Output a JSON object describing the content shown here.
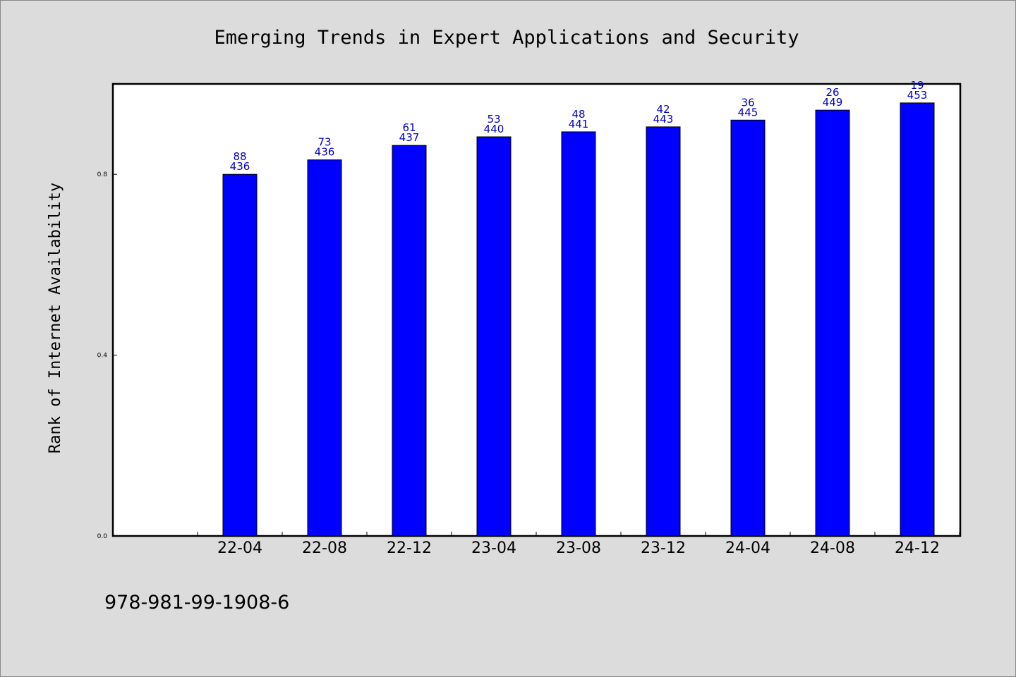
{
  "chart_data": {
    "type": "bar",
    "title": "Emerging Trends in Expert Applications and Security",
    "ylabel": "Rank of Internet Availability",
    "xlabel": "",
    "ylim": [
      0,
      1.0
    ],
    "yticks": [
      "0.0",
      "0.4",
      "0.8"
    ],
    "grid": false,
    "bar_color": "#0000ff",
    "label_color": "#0000cc",
    "categories": [
      "22-04",
      "22-08",
      "22-12",
      "23-04",
      "23-08",
      "23-12",
      "24-04",
      "24-08",
      "24-12"
    ],
    "values": [
      0.8,
      0.832,
      0.864,
      0.883,
      0.894,
      0.905,
      0.92,
      0.942,
      0.958
    ],
    "labels_top": [
      "88",
      "73",
      "61",
      "53",
      "48",
      "42",
      "36",
      "26",
      "19"
    ],
    "labels_bottom": [
      "436",
      "436",
      "437",
      "440",
      "441",
      "443",
      "445",
      "449",
      "453"
    ]
  },
  "footer_text": "978-981-99-1908-6"
}
